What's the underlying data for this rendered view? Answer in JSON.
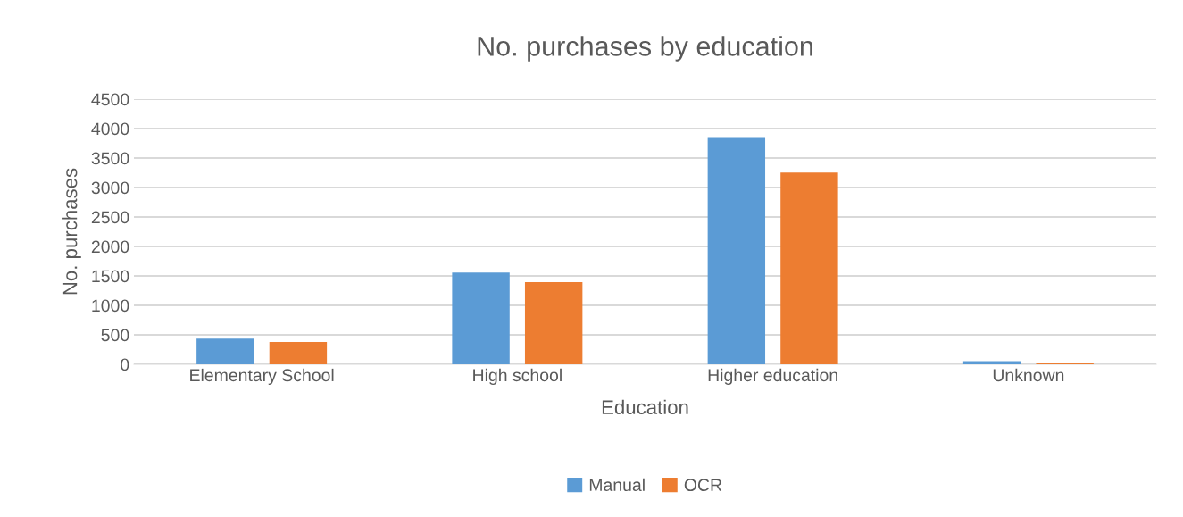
{
  "chart_data": {
    "type": "bar",
    "title": "No. purchases by education",
    "xlabel": "Education",
    "ylabel": "No. purchases",
    "categories": [
      "Elementary School",
      "High school",
      "Higher education",
      "Unknown"
    ],
    "series": [
      {
        "name": "Manual",
        "color": "#5b9bd5",
        "values": [
          437,
          1558,
          3856,
          53
        ]
      },
      {
        "name": "OCR",
        "color": "#ed7d31",
        "values": [
          379,
          1395,
          3252,
          26
        ]
      }
    ],
    "ylim": [
      0,
      4500
    ],
    "yticks": [
      0,
      500,
      1000,
      1500,
      2000,
      2500,
      3000,
      3500,
      4000,
      4500
    ],
    "grid": "y",
    "legend": "bottom"
  }
}
